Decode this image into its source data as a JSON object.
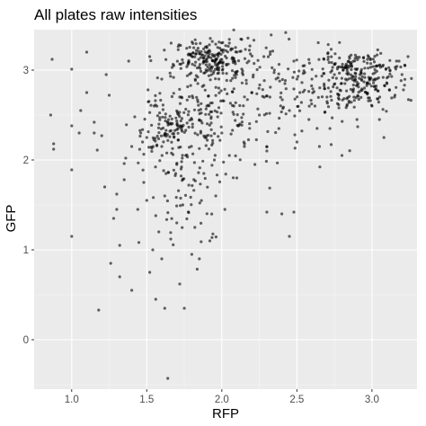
{
  "chart_data": {
    "type": "scatter",
    "title": "All plates raw intensities",
    "xlabel": "RFP",
    "ylabel": "GFP",
    "xlim": [
      0.75,
      3.3
    ],
    "ylim": [
      -0.55,
      3.45
    ],
    "x_ticks": [
      1.0,
      1.5,
      2.0,
      2.5,
      3.0
    ],
    "x_tick_labels": [
      "1.0",
      "1.5",
      "2.0",
      "2.5",
      "3.0"
    ],
    "y_ticks": [
      0,
      1,
      2,
      3
    ],
    "y_tick_labels": [
      "0",
      "1",
      "2",
      "3"
    ],
    "grid": true,
    "legend": "none",
    "colors": {
      "panel": "#ebebeb",
      "point": "#000000",
      "point_opacity": 0.6
    },
    "series": [
      {
        "points": [
          [
            0.87,
            3.12
          ],
          [
            0.86,
            2.5
          ],
          [
            0.88,
            2.18
          ],
          [
            0.88,
            2.12
          ],
          [
            1.0,
            3.01
          ],
          [
            1.0,
            2.38
          ],
          [
            1.0,
            1.89
          ],
          [
            1.0,
            1.15
          ],
          [
            1.05,
            2.3
          ],
          [
            1.06,
            2.55
          ],
          [
            1.1,
            2.75
          ],
          [
            1.1,
            3.2
          ],
          [
            1.15,
            2.42
          ],
          [
            1.15,
            2.3
          ],
          [
            1.17,
            2.11
          ],
          [
            1.18,
            0.33
          ],
          [
            1.2,
            2.27
          ],
          [
            1.22,
            1.7
          ],
          [
            1.23,
            2.95
          ],
          [
            1.25,
            2.72
          ],
          [
            1.26,
            0.85
          ],
          [
            1.28,
            1.35
          ],
          [
            1.3,
            1.62
          ],
          [
            1.3,
            1.45
          ],
          [
            1.32,
            1.05
          ],
          [
            1.32,
            0.7
          ],
          [
            1.35,
            1.96
          ],
          [
            1.35,
            1.78
          ],
          [
            1.36,
            2.02
          ],
          [
            1.38,
            3.1
          ],
          [
            1.4,
            2.15
          ],
          [
            1.4,
            0.55
          ],
          [
            1.42,
            2.48
          ],
          [
            1.44,
            1.45
          ],
          [
            1.46,
            2.3
          ],
          [
            1.48,
            1.75
          ],
          [
            1.5,
            2.25
          ],
          [
            1.5,
            1.55
          ],
          [
            1.52,
            3.15
          ],
          [
            1.52,
            0.75
          ],
          [
            1.54,
            1.0
          ],
          [
            1.55,
            2.6
          ],
          [
            1.56,
            1.38
          ],
          [
            1.56,
            0.45
          ],
          [
            1.58,
            1.2
          ],
          [
            1.6,
            2.9
          ],
          [
            1.6,
            2.15
          ],
          [
            1.6,
            0.9
          ],
          [
            1.62,
            1.6
          ],
          [
            1.62,
            0.35
          ],
          [
            1.64,
            -0.43
          ],
          [
            1.65,
            2.4
          ],
          [
            1.66,
            1.12
          ],
          [
            1.68,
            3.05
          ],
          [
            1.7,
            1.95
          ],
          [
            1.7,
            1.3
          ],
          [
            1.72,
            2.7
          ],
          [
            1.72,
            0.62
          ],
          [
            1.74,
            1.5
          ],
          [
            1.75,
            0.35
          ],
          [
            1.76,
            2.05
          ],
          [
            1.78,
            3.18
          ],
          [
            1.78,
            1.72
          ],
          [
            1.8,
            2.45
          ],
          [
            1.8,
            0.95
          ],
          [
            1.82,
            1.25
          ],
          [
            1.84,
            2.85
          ],
          [
            1.85,
            0.9
          ],
          [
            1.86,
            2.3
          ],
          [
            1.88,
            1.85
          ],
          [
            1.9,
            3.25
          ],
          [
            1.9,
            2.6
          ],
          [
            1.92,
            1.1
          ],
          [
            1.95,
            2.0
          ],
          [
            1.96,
            1.6
          ],
          [
            1.98,
            2.9
          ],
          [
            2.0,
            2.3
          ],
          [
            2.02,
            1.45
          ],
          [
            2.05,
            3.3
          ],
          [
            2.05,
            2.05
          ],
          [
            2.08,
            2.6
          ],
          [
            2.1,
            3.2
          ],
          [
            2.1,
            1.8
          ],
          [
            2.12,
            2.4
          ],
          [
            2.15,
            2.15
          ],
          [
            2.18,
            3.1
          ],
          [
            2.2,
            2.75
          ],
          [
            2.22,
            1.95
          ],
          [
            2.25,
            2.5
          ],
          [
            2.28,
            3.15
          ],
          [
            2.3,
            2.1
          ],
          [
            2.3,
            1.42
          ],
          [
            2.32,
            2.7
          ],
          [
            2.35,
            3.0
          ],
          [
            2.38,
            2.35
          ],
          [
            2.4,
            1.4
          ],
          [
            2.42,
            2.85
          ],
          [
            2.45,
            2.55
          ],
          [
            2.45,
            1.15
          ],
          [
            2.48,
            3.1
          ],
          [
            2.48,
            1.42
          ],
          [
            2.5,
            2.2
          ],
          [
            2.52,
            2.75
          ],
          [
            2.55,
            3.05
          ],
          [
            2.58,
            2.45
          ],
          [
            2.6,
            2.9
          ],
          [
            2.62,
            2.6
          ],
          [
            2.65,
            2.15
          ],
          [
            2.68,
            3.12
          ],
          [
            2.7,
            2.7
          ],
          [
            2.72,
            2.35
          ],
          [
            2.75,
            2.95
          ],
          [
            2.78,
            2.58
          ],
          [
            2.8,
            2.05
          ],
          [
            2.82,
            2.85
          ],
          [
            2.85,
            3.15
          ],
          [
            2.88,
            2.7
          ],
          [
            2.9,
            2.45
          ],
          [
            2.92,
            2.95
          ],
          [
            2.95,
            2.8
          ],
          [
            2.97,
            3.12
          ],
          [
            3.0,
            2.6
          ],
          [
            3.02,
            2.9
          ],
          [
            3.05,
            3.05
          ],
          [
            3.05,
            2.45
          ],
          [
            3.08,
            2.25
          ],
          [
            3.1,
            2.85
          ],
          [
            3.12,
            3.0
          ],
          [
            3.15,
            2.7
          ],
          [
            3.18,
            3.1
          ],
          [
            3.2,
            2.95
          ],
          [
            3.22,
            3.05
          ],
          [
            3.24,
            3.15
          ],
          [
            1.98,
            3.0
          ],
          [
            1.98,
            2.8
          ],
          [
            1.76,
            2.33
          ],
          [
            2.5,
            2.9
          ]
        ],
        "clusters": [
          {
            "cx": 1.95,
            "cy": 3.12,
            "sx": 0.13,
            "sy": 0.11,
            "n": 200
          },
          {
            "cx": 2.88,
            "cy": 2.85,
            "sx": 0.14,
            "sy": 0.16,
            "n": 190
          },
          {
            "cx": 1.62,
            "cy": 2.35,
            "sx": 0.12,
            "sy": 0.19,
            "n": 110
          },
          {
            "cx": 1.9,
            "cy": 2.5,
            "sx": 0.16,
            "sy": 0.28,
            "n": 140
          },
          {
            "cx": 2.4,
            "cy": 2.75,
            "sx": 0.24,
            "sy": 0.32,
            "n": 130
          },
          {
            "cx": 1.78,
            "cy": 1.7,
            "sx": 0.14,
            "sy": 0.35,
            "n": 65
          },
          {
            "cx": 2.95,
            "cy": 3.05,
            "sx": 0.16,
            "sy": 0.08,
            "n": 60
          }
        ]
      }
    ]
  }
}
